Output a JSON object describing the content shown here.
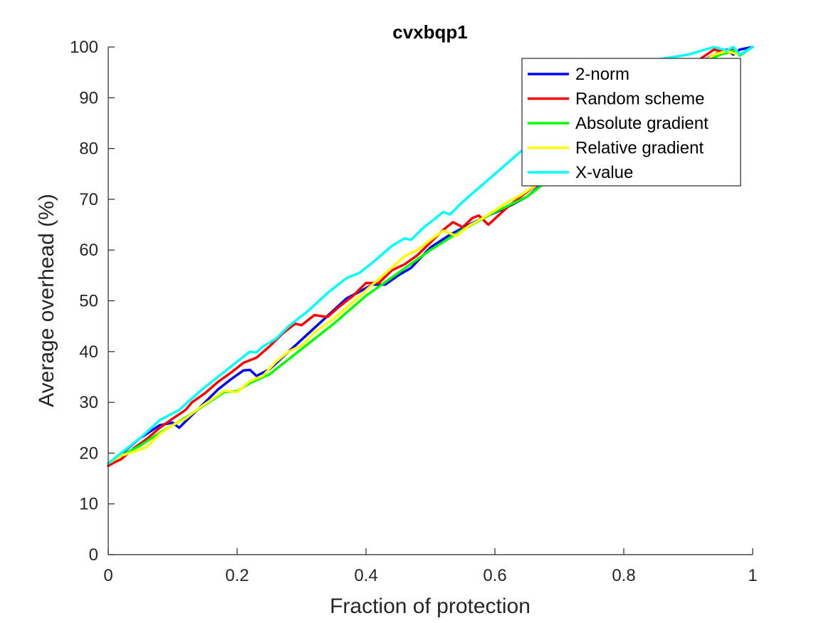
{
  "chart_data": {
    "type": "line",
    "title": "cvxbqp1",
    "xlabel": "Fraction of protection",
    "ylabel": "Average overhead (%)",
    "xlim": [
      0,
      1
    ],
    "ylim": [
      0,
      100
    ],
    "xticks": [
      "0",
      "0.2",
      "0.4",
      "0.6",
      "0.8",
      "1"
    ],
    "yticks": [
      "0",
      "10",
      "20",
      "30",
      "40",
      "50",
      "60",
      "70",
      "80",
      "90",
      "100"
    ],
    "grid": false,
    "legend_location": "top-right",
    "series": [
      {
        "name": "2-norm",
        "color": "#0000ff",
        "x": [
          0,
          0.02,
          0.05,
          0.08,
          0.1,
          0.11,
          0.13,
          0.15,
          0.17,
          0.19,
          0.21,
          0.22,
          0.23,
          0.25,
          0.28,
          0.31,
          0.34,
          0.37,
          0.39,
          0.41,
          0.43,
          0.45,
          0.47,
          0.5,
          0.53,
          0.56,
          0.59,
          0.62,
          0.65,
          0.7,
          0.75,
          0.8,
          0.85,
          0.9,
          0.94,
          0.96,
          0.97,
          0.98,
          1
        ],
        "y": [
          17.5,
          19.8,
          23,
          25.5,
          26,
          25,
          27.5,
          30,
          32.5,
          34.5,
          36.3,
          36.4,
          35.2,
          36.5,
          40,
          43.5,
          47,
          50.5,
          51.8,
          53.2,
          53.2,
          55,
          56.5,
          60.5,
          63,
          65,
          66.8,
          68.5,
          70.5,
          76,
          81,
          86,
          90.5,
          95.5,
          98.5,
          99.5,
          98.5,
          99.5,
          100
        ]
      },
      {
        "name": "Random scheme",
        "color": "#ff0000",
        "x": [
          0,
          0.01,
          0.02,
          0.04,
          0.06,
          0.08,
          0.1,
          0.12,
          0.13,
          0.15,
          0.17,
          0.19,
          0.21,
          0.23,
          0.25,
          0.27,
          0.29,
          0.3,
          0.32,
          0.34,
          0.36,
          0.38,
          0.4,
          0.42,
          0.44,
          0.46,
          0.48,
          0.5,
          0.52,
          0.535,
          0.55,
          0.565,
          0.575,
          0.59,
          0.62,
          0.65,
          0.7,
          0.75,
          0.8,
          0.85,
          0.9,
          0.94,
          0.96,
          0.97,
          0.98,
          1
        ],
        "y": [
          17.5,
          18.2,
          18.8,
          21,
          22.8,
          25,
          26.8,
          28.5,
          30,
          31.8,
          34,
          35.8,
          37.8,
          38.8,
          41,
          43.5,
          45.5,
          45.2,
          47.2,
          46.8,
          49,
          51,
          53.5,
          53.5,
          56,
          57.2,
          59,
          61.5,
          64,
          65.5,
          64.5,
          66.3,
          66.8,
          65,
          68.5,
          71.5,
          76,
          81,
          86,
          91,
          96,
          99.5,
          98.8,
          99.8,
          98.5,
          100
        ]
      },
      {
        "name": "Absolute gradient",
        "color": "#00ff00",
        "x": [
          0,
          0.02,
          0.05,
          0.08,
          0.12,
          0.15,
          0.18,
          0.2,
          0.22,
          0.25,
          0.3,
          0.35,
          0.4,
          0.45,
          0.5,
          0.55,
          0.6,
          0.65,
          0.7,
          0.75,
          0.8,
          0.85,
          0.9,
          0.95,
          0.97,
          0.98,
          1
        ],
        "y": [
          18,
          19.5,
          21.5,
          24,
          27,
          29.5,
          32,
          32.2,
          33.8,
          35.5,
          40.5,
          45.5,
          51,
          55.5,
          60,
          64,
          67.5,
          70.5,
          75.5,
          80.5,
          85.5,
          90.5,
          95.5,
          98.5,
          99.2,
          98.3,
          100
        ]
      },
      {
        "name": "Relative gradient",
        "color": "#ffff00",
        "x": [
          0,
          0.02,
          0.04,
          0.06,
          0.08,
          0.1,
          0.12,
          0.14,
          0.16,
          0.18,
          0.2,
          0.22,
          0.24,
          0.26,
          0.28,
          0.3,
          0.32,
          0.35,
          0.38,
          0.41,
          0.44,
          0.46,
          0.48,
          0.5,
          0.52,
          0.54,
          0.56,
          0.58,
          0.6,
          0.62,
          0.64,
          0.66,
          0.7,
          0.75,
          0.8,
          0.85,
          0.9,
          0.94,
          0.96,
          0.97,
          0.98,
          1
        ],
        "y": [
          18,
          19.5,
          20.3,
          21.2,
          23.8,
          25.5,
          26.8,
          28.8,
          30.5,
          32.3,
          32,
          34.2,
          35.2,
          38,
          40,
          41.2,
          43.8,
          46.5,
          49.8,
          53.2,
          56.5,
          58.8,
          60,
          62,
          63.8,
          62.8,
          64.8,
          66.2,
          67.8,
          69.5,
          70.8,
          72.5,
          76.5,
          81,
          86,
          90.5,
          95,
          98.5,
          99.2,
          98.8,
          98.5,
          100
        ]
      },
      {
        "name": "X-value",
        "color": "#00ffff",
        "x": [
          0,
          0.02,
          0.05,
          0.08,
          0.11,
          0.13,
          0.15,
          0.17,
          0.19,
          0.22,
          0.23,
          0.24,
          0.26,
          0.28,
          0.31,
          0.34,
          0.37,
          0.39,
          0.41,
          0.44,
          0.46,
          0.47,
          0.49,
          0.52,
          0.53,
          0.55,
          0.6,
          0.65,
          0.7,
          0.75,
          0.8,
          0.85,
          0.9,
          0.94,
          0.96,
          0.97,
          0.98,
          1
        ],
        "y": [
          18,
          20,
          23,
          26.5,
          28.5,
          30.8,
          33,
          35,
          37,
          40,
          39.8,
          41,
          42.5,
          45,
          48,
          51.5,
          54.5,
          55.5,
          57.5,
          60.8,
          62.3,
          62,
          64.5,
          67.5,
          67,
          69.5,
          75,
          80.5,
          85.5,
          90.5,
          95,
          97.5,
          98.5,
          100,
          99.3,
          100,
          98.5,
          100
        ]
      }
    ]
  }
}
